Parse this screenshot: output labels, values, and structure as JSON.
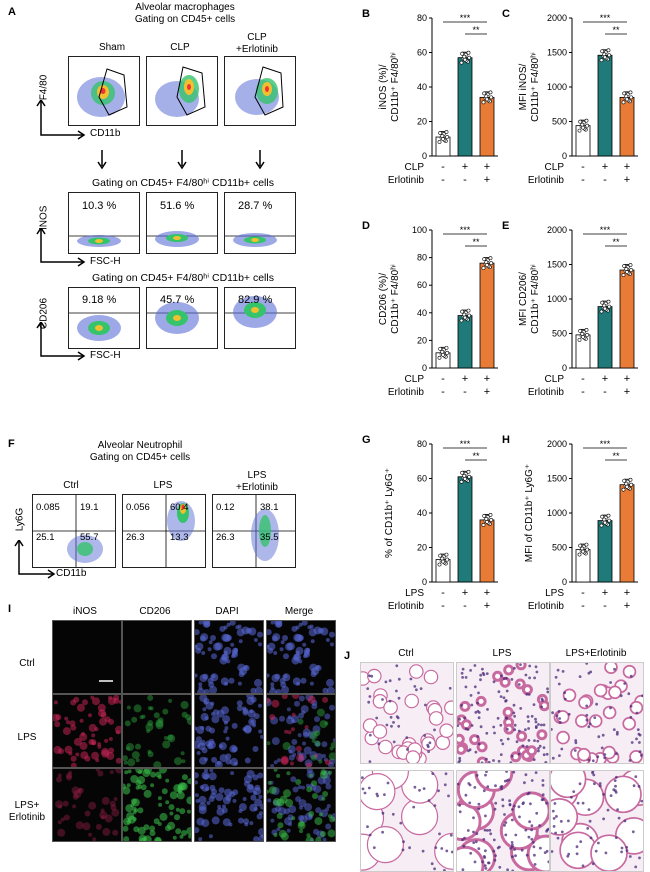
{
  "panelA": {
    "label": "A",
    "title1": "Alveolar macrophages",
    "title2": "Gating on CD45+ cells",
    "groups": [
      "Sham",
      "CLP",
      "CLP\n+Erlotinib"
    ],
    "yaxis": "F4/80",
    "xaxis": "CD11b",
    "gate2": "Gating on CD45+ F4/80ʰⁱ CD11b+ cells",
    "inos_pcts": [
      "10.3  %",
      "51.6  %",
      "28.7  %"
    ],
    "inos_axis": "iNOS",
    "fsc": "FSC-H",
    "gate3": "Gating on CD45+ F4/80ʰⁱ CD11b+ cells",
    "cd206_pcts": [
      "9.18  %",
      "45.7  %",
      "82.9  %"
    ],
    "cd206_axis": "CD206"
  },
  "panelF": {
    "label": "F",
    "title1": "Alveolar Neutrophil",
    "title2": "Gating on CD45+ cells",
    "groups": [
      "Ctrl",
      "LPS",
      "LPS\n+Erlotinib"
    ],
    "yaxis": "Ly6G",
    "xaxis": "CD11b",
    "quads": [
      [
        "0.085",
        "19.1",
        "25.1",
        "55.7"
      ],
      [
        "0.056",
        "60.4",
        "26.3",
        "13.3"
      ],
      [
        "0.12",
        "38.1",
        "26.3",
        "35.5"
      ]
    ]
  },
  "panelI": {
    "label": "I",
    "cols": [
      "iNOS",
      "CD206",
      "DAPI",
      "Merge"
    ],
    "rows": [
      "Ctrl",
      "LPS",
      "LPS+\nErlotinib"
    ]
  },
  "panelJ": {
    "label": "J",
    "cols": [
      "Ctrl",
      "LPS",
      "LPS+Erlotinib"
    ]
  },
  "colors": {
    "white": "#ffffff",
    "teal": "#1f7a79",
    "orange": "#e87b35"
  },
  "chart_data": [
    {
      "id": "B",
      "type": "bar",
      "categories": [
        "Sham/Ctrl",
        "CLP",
        "CLP+Erlotinib"
      ],
      "values": [
        11,
        57,
        34
      ],
      "ylabel": "iNOS (%)/\nCD11b⁺ F4/80ʰⁱ",
      "ylim": [
        0,
        80
      ],
      "yticks": [
        0,
        20,
        40,
        60,
        80
      ],
      "rows": [
        {
          "name": "CLP",
          "marks": [
            "-",
            "+",
            "+"
          ]
        },
        {
          "name": "Erlotinib",
          "marks": [
            "-",
            "-",
            "+"
          ]
        }
      ],
      "sig": [
        "***",
        "**"
      ]
    },
    {
      "id": "C",
      "type": "bar",
      "categories": [
        "Sham/Ctrl",
        "CLP",
        "CLP+Erlotinib"
      ],
      "values": [
        440,
        1460,
        850
      ],
      "ylabel": "MFI iNOS/\nCD11b⁺ F4/80ʰⁱ",
      "ylim": [
        0,
        2000
      ],
      "yticks": [
        0,
        500,
        1000,
        1500,
        2000
      ],
      "rows": [
        {
          "name": "CLP",
          "marks": [
            "-",
            "+",
            "+"
          ]
        },
        {
          "name": "Erlotinib",
          "marks": [
            "-",
            "-",
            "+"
          ]
        }
      ],
      "sig": [
        "***",
        "**"
      ]
    },
    {
      "id": "D",
      "type": "bar",
      "categories": [
        "Sham/Ctrl",
        "CLP",
        "CLP+Erlotinib"
      ],
      "values": [
        11,
        38,
        76
      ],
      "ylabel": "CD206 (%)/\nCD11b⁺ F4/80ʰⁱ",
      "ylim": [
        0,
        100
      ],
      "yticks": [
        0,
        20,
        40,
        60,
        80,
        100
      ],
      "rows": [
        {
          "name": "CLP",
          "marks": [
            "-",
            "+",
            "+"
          ]
        },
        {
          "name": "Erlotinib",
          "marks": [
            "-",
            "-",
            "+"
          ]
        }
      ],
      "sig": [
        "***",
        "**"
      ]
    },
    {
      "id": "E",
      "type": "bar",
      "categories": [
        "Sham/Ctrl",
        "CLP",
        "CLP+Erlotinib"
      ],
      "values": [
        480,
        890,
        1420
      ],
      "ylabel": "MFI CD206/\nCD11b⁺ F4/80ʰⁱ",
      "ylim": [
        0,
        2000
      ],
      "yticks": [
        0,
        500,
        1000,
        1500,
        2000
      ],
      "rows": [
        {
          "name": "CLP",
          "marks": [
            "-",
            "+",
            "+"
          ]
        },
        {
          "name": "Erlotinib",
          "marks": [
            "-",
            "-",
            "+"
          ]
        }
      ],
      "sig": [
        "***",
        "**"
      ]
    },
    {
      "id": "G",
      "type": "bar",
      "categories": [
        "Ctrl",
        "LPS",
        "LPS+Erlotinib"
      ],
      "values": [
        13,
        61,
        36
      ],
      "ylabel": "% of CD11b⁺ Ly6G⁺",
      "ylim": [
        0,
        80
      ],
      "yticks": [
        0,
        20,
        40,
        60,
        80
      ],
      "rows": [
        {
          "name": "LPS",
          "marks": [
            "-",
            "+",
            "+"
          ]
        },
        {
          "name": "Erlotinib",
          "marks": [
            "-",
            "-",
            "+"
          ]
        }
      ],
      "sig": [
        "***",
        "**"
      ]
    },
    {
      "id": "H",
      "type": "bar",
      "categories": [
        "Ctrl",
        "LPS",
        "LPS+Erlotinib"
      ],
      "values": [
        470,
        890,
        1410
      ],
      "ylabel": "MFI of CD11b⁺ Ly6G⁺",
      "ylim": [
        0,
        2000
      ],
      "yticks": [
        0,
        500,
        1000,
        1500,
        2000
      ],
      "rows": [
        {
          "name": "LPS",
          "marks": [
            "-",
            "+",
            "+"
          ]
        },
        {
          "name": "Erlotinib",
          "marks": [
            "-",
            "-",
            "+"
          ]
        }
      ],
      "sig": [
        "***",
        "**"
      ]
    }
  ]
}
